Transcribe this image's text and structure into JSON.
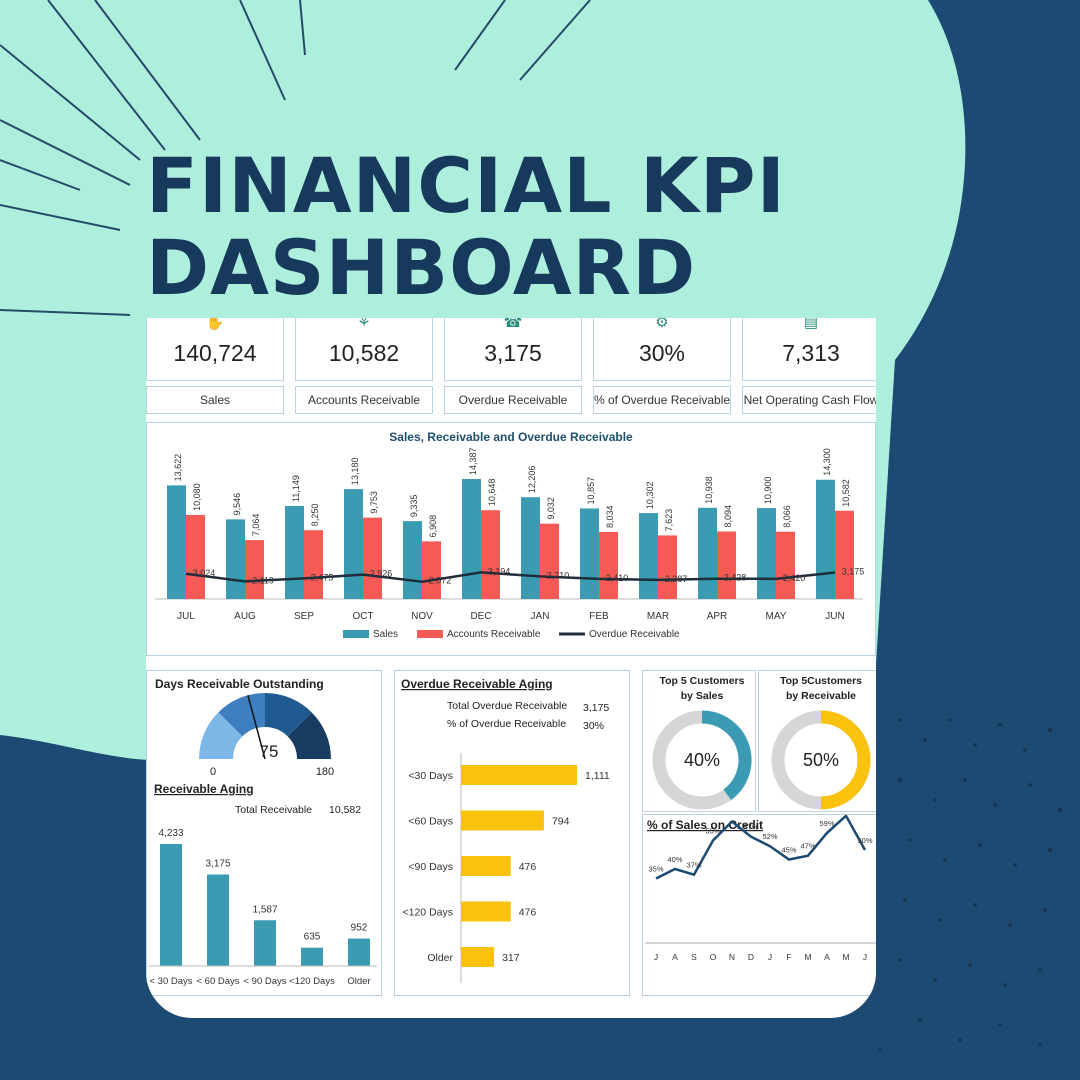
{
  "title": {
    "line1": "FINANCIAL KPI",
    "line2": "DASHBOARD"
  },
  "colors": {
    "teal": "#3a9bb3",
    "coral": "#f55a55",
    "dark": "#1f2d3d",
    "yellow": "#f9c20f",
    "navy": "#1d4a72",
    "mint": "#aeeedd"
  },
  "kpis": [
    {
      "icon": "money-hand-icon",
      "value": "140,724",
      "label": "Sales"
    },
    {
      "icon": "hand-coin-icon",
      "value": "10,582",
      "label": "Accounts Receivable"
    },
    {
      "icon": "phone-money-icon",
      "value": "3,175",
      "label": "Overdue Receivable"
    },
    {
      "icon": "gear-money-icon",
      "value": "30%",
      "label": "% of Overdue Receivable"
    },
    {
      "icon": "cash-icon",
      "value": "7,313",
      "label": "Net Operating Cash Flow"
    }
  ],
  "chart_data": [
    {
      "type": "bar",
      "title": "Sales, Receivable and Overdue Receivable",
      "categories": [
        "JUL",
        "AUG",
        "SEP",
        "OCT",
        "NOV",
        "DEC",
        "JAN",
        "FEB",
        "MAR",
        "APR",
        "MAY",
        "JUN"
      ],
      "series": [
        {
          "name": "Sales",
          "type": "bar",
          "color": "#3a9bb3",
          "values": [
            13622,
            9546,
            11149,
            13180,
            9335,
            14387,
            12206,
            10857,
            10302,
            10938,
            10900,
            14300
          ],
          "labels": [
            "13,622",
            "9,546",
            "11,149",
            "13,180",
            "9,335",
            "14,387",
            "12,206",
            "10,857",
            "10,302",
            "10,938",
            "10,900",
            "14,300"
          ]
        },
        {
          "name": "Accounts Receivable",
          "type": "bar",
          "color": "#f55a55",
          "values": [
            10080,
            7064,
            8250,
            9753,
            6908,
            10648,
            9032,
            8034,
            7623,
            8094,
            8066,
            10582
          ],
          "labels": [
            "10,080",
            "7,064",
            "8,250",
            "9,753",
            "6,908",
            "10,648",
            "9,032",
            "8,034",
            "7,623",
            "8,094",
            "8,066",
            "10,582"
          ]
        },
        {
          "name": "Overdue Receivable",
          "type": "line",
          "color": "#1f2d3d",
          "values": [
            3024,
            2119,
            2475,
            2926,
            2072,
            3194,
            2710,
            2410,
            2287,
            2428,
            2420,
            3175
          ],
          "labels": [
            "3,024",
            "2,119",
            "2,475",
            "2,926",
            "2,072",
            "3,194",
            "2,710",
            "2,410",
            "2,287",
            "2,428",
            "2,420",
            "3,175"
          ]
        }
      ],
      "legend": "bottom"
    },
    {
      "type": "gauge",
      "title": "Days Receivable Outstanding",
      "value": 75,
      "value_label": "75",
      "min": 0,
      "max": 180,
      "min_label": "0",
      "max_label": "180"
    },
    {
      "type": "bar",
      "title": "Receivable Aging",
      "total_label": "Total Receivable",
      "total_value": "10,582",
      "categories": [
        "< 30 Days",
        "< 60 Days",
        "< 90 Days",
        "<120 Days",
        "Older"
      ],
      "values": [
        4233,
        3175,
        1587,
        635,
        952
      ],
      "labels": [
        "4,233",
        "3,175",
        "1,587",
        "635",
        "952"
      ]
    },
    {
      "type": "bar",
      "orientation": "horizontal",
      "title": "Overdue Receivable Aging",
      "summary": [
        {
          "label": "Total  Overdue Receivable",
          "value": "3,175"
        },
        {
          "label": "% of Overdue Receivable",
          "value": "30%"
        }
      ],
      "categories": [
        "<30 Days",
        "<60 Days",
        "<90 Days",
        "<120 Days",
        "Older"
      ],
      "values": [
        1111,
        794,
        476,
        476,
        317
      ],
      "labels": [
        "1,111",
        "794",
        "476",
        "476",
        "317"
      ]
    },
    {
      "type": "pie",
      "title": "Top 5 Customers by Sales",
      "title_lines": [
        "Top 5 Customers",
        "by Sales"
      ],
      "value": 40,
      "value_label": "40%",
      "color": "#3a9bb3"
    },
    {
      "type": "pie",
      "title": "Top 5Customers by Receivable",
      "title_lines": [
        "Top 5Customers",
        "by Receivable"
      ],
      "value": 50,
      "value_label": "50%",
      "color": "#f9c20f"
    },
    {
      "type": "line",
      "title": "% of Sales on Credit",
      "categories": [
        "J",
        "A",
        "S",
        "O",
        "N",
        "D",
        "J",
        "F",
        "M",
        "A",
        "M",
        "J"
      ],
      "values": [
        35,
        40,
        37,
        55,
        65,
        57,
        52,
        45,
        47,
        59,
        68,
        50
      ],
      "labels": [
        "35%",
        "40%",
        "37%",
        "55%",
        "65%",
        "57%",
        "52%",
        "45%",
        "47%",
        "59%",
        "68%",
        "50%"
      ]
    }
  ]
}
